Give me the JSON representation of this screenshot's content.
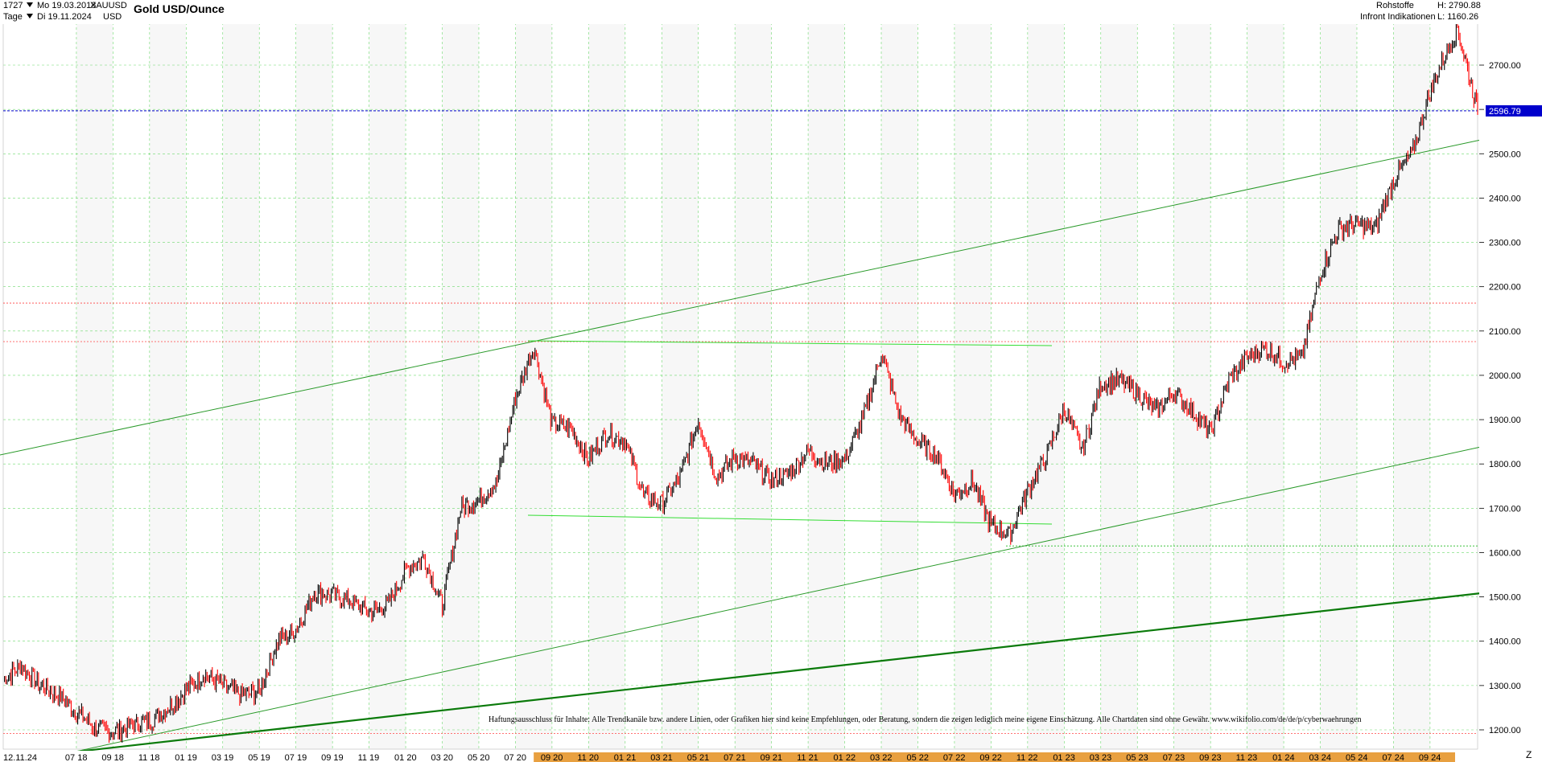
{
  "header": {
    "count": "1727",
    "date_from": "Mo 19.03.2018",
    "symbol": "XAUUSD",
    "period": "Tage",
    "date_to": "Di 19.11.2024",
    "currency": "USD",
    "title": "Gold USD/Ounce",
    "category": "Rohstoffe",
    "provider": "Infront Indikationen",
    "high": "H: 2790.88",
    "low": "L: 1160.26"
  },
  "disclaimer": "Haftungsausschluss für Inhalte: Alle Trendkanäle bzw. andere Linien, oder Grafiken hier sind keine Empfehlungen, oder Beratung, sondern die zeigen lediglich meine eigene Einschätzung. Alle Chartdaten sind ohne Gewähr. www.wikifolio.com/de/de/p/cyberwaehrungen",
  "corner_label": "Z",
  "colors": {
    "up": "#000000",
    "down": "#ff0000",
    "trend": "#2a9a2a",
    "trend_bold": "#0a7a0a",
    "channel_light": "#33dd33",
    "last_price": "#0000cc",
    "grid": "#33cc33",
    "bottom_band": "#e8a040"
  },
  "chart_data": {
    "type": "line",
    "title": "Gold USD/Ounce",
    "ylim": [
      1160,
      2840
    ],
    "yticks": [
      1200,
      1300,
      1400,
      1500,
      1600,
      1700,
      1800,
      1900,
      2000,
      2100,
      2200,
      2300,
      2400,
      2500,
      2600,
      2700
    ],
    "ytick_labels": [
      "1200.00",
      "1300.00",
      "1400.00",
      "1500.00",
      "1600.00",
      "1700.00",
      "1800.00",
      "1900.00",
      "2000.00",
      "2100.00",
      "2200.00",
      "2300.00",
      "2400.00",
      "2500.00",
      "2600.00",
      "2700.00"
    ],
    "xtick_labels": [
      "12.11.24",
      "07 18",
      "09 18",
      "11 18",
      "01 19",
      "03 19",
      "05 19",
      "07 19",
      "09 19",
      "11 19",
      "01 20",
      "03 20",
      "05 20",
      "07 20",
      "09 20",
      "11 20",
      "01 21",
      "03 21",
      "05 21",
      "07 21",
      "09 21",
      "11 21",
      "01 22",
      "03 22",
      "05 22",
      "07 22",
      "09 22",
      "11 22",
      "01 23",
      "03 23",
      "05 23",
      "07 23",
      "09 23",
      "11 23",
      "01 24",
      "03 24",
      "05 24",
      "07 24",
      "09 24"
    ],
    "last_price": 2596.79,
    "last_price_label": "2596.79",
    "high": 2790.88,
    "low": 1160.26,
    "horizontal_levels": [
      {
        "value": 2163,
        "style": "red-dotted"
      },
      {
        "value": 2076,
        "style": "red-dotted"
      },
      {
        "value": 1615,
        "style": "green-dotted"
      },
      {
        "value": 1192,
        "style": "red-dotted"
      }
    ],
    "price_series": {
      "name": "XAUUSD",
      "points": [
        [
          "2018-03",
          1315
        ],
        [
          "2018-04",
          1345
        ],
        [
          "2018-05",
          1300
        ],
        [
          "2018-06",
          1280
        ],
        [
          "2018-07",
          1240
        ],
        [
          "2018-08",
          1205
        ],
        [
          "2018-09",
          1195
        ],
        [
          "2018-10",
          1210
        ],
        [
          "2018-11",
          1220
        ],
        [
          "2018-12",
          1250
        ],
        [
          "2019-01",
          1290
        ],
        [
          "2019-02",
          1325
        ],
        [
          "2019-03",
          1300
        ],
        [
          "2019-04",
          1280
        ],
        [
          "2019-05",
          1285
        ],
        [
          "2019-06",
          1400
        ],
        [
          "2019-07",
          1425
        ],
        [
          "2019-08",
          1510
        ],
        [
          "2019-09",
          1505
        ],
        [
          "2019-10",
          1490
        ],
        [
          "2019-11",
          1465
        ],
        [
          "2019-12",
          1480
        ],
        [
          "2020-01",
          1560
        ],
        [
          "2020-02",
          1590
        ],
        [
          "2020-03",
          1480
        ],
        [
          "2020-04",
          1700
        ],
        [
          "2020-05",
          1720
        ],
        [
          "2020-06",
          1760
        ],
        [
          "2020-07",
          1950
        ],
        [
          "2020-08",
          2065
        ],
        [
          "2020-09",
          1890
        ],
        [
          "2020-10",
          1880
        ],
        [
          "2020-11",
          1810
        ],
        [
          "2020-12",
          1870
        ],
        [
          "2021-01",
          1850
        ],
        [
          "2021-02",
          1730
        ],
        [
          "2021-03",
          1710
        ],
        [
          "2021-04",
          1770
        ],
        [
          "2021-05",
          1900
        ],
        [
          "2021-06",
          1770
        ],
        [
          "2021-07",
          1815
        ],
        [
          "2021-08",
          1800
        ],
        [
          "2021-09",
          1760
        ],
        [
          "2021-10",
          1780
        ],
        [
          "2021-11",
          1830
        ],
        [
          "2021-12",
          1800
        ],
        [
          "2022-01",
          1810
        ],
        [
          "2022-02",
          1900
        ],
        [
          "2022-03",
          2050
        ],
        [
          "2022-04",
          1910
        ],
        [
          "2022-05",
          1850
        ],
        [
          "2022-06",
          1820
        ],
        [
          "2022-07",
          1730
        ],
        [
          "2022-08",
          1760
        ],
        [
          "2022-09",
          1660
        ],
        [
          "2022-10",
          1640
        ],
        [
          "2022-11",
          1740
        ],
        [
          "2022-12",
          1815
        ],
        [
          "2023-01",
          1925
        ],
        [
          "2023-02",
          1830
        ],
        [
          "2023-03",
          1980
        ],
        [
          "2023-04",
          1990
        ],
        [
          "2023-05",
          1960
        ],
        [
          "2023-06",
          1920
        ],
        [
          "2023-07",
          1960
        ],
        [
          "2023-08",
          1920
        ],
        [
          "2023-09",
          1870
        ],
        [
          "2023-10",
          1990
        ],
        [
          "2023-11",
          2040
        ],
        [
          "2023-12",
          2060
        ],
        [
          "2024-01",
          2030
        ],
        [
          "2024-02",
          2040
        ],
        [
          "2024-03",
          2230
        ],
        [
          "2024-04",
          2330
        ],
        [
          "2024-05",
          2340
        ],
        [
          "2024-06",
          2330
        ],
        [
          "2024-07",
          2440
        ],
        [
          "2024-08",
          2500
        ],
        [
          "2024-09",
          2640
        ],
        [
          "2024-10",
          2740
        ],
        [
          "2024-10",
          2785
        ],
        [
          "2024-11",
          2596
        ]
      ]
    },
    "trend_lines": [
      {
        "name": "upper channel",
        "from": [
          "2018-03",
          1818
        ],
        "to": [
          "2024-11",
          2538
        ],
        "style": "thin-green"
      },
      {
        "name": "lower channel",
        "from": [
          "2018-07",
          1160
        ],
        "to": [
          "2024-11",
          1840
        ],
        "style": "thin-green"
      },
      {
        "name": "long-term support",
        "from": [
          "2018-07",
          1160
        ],
        "to": [
          "2024-11",
          1510
        ],
        "style": "bold-green"
      },
      {
        "name": "range top",
        "from": [
          "2020-08",
          2078
        ],
        "to": [
          "2022-12",
          2070
        ],
        "style": "light-green"
      },
      {
        "name": "range bottom",
        "from": [
          "2020-08",
          1685
        ],
        "to": [
          "2022-12",
          1665
        ],
        "style": "light-green"
      }
    ]
  }
}
